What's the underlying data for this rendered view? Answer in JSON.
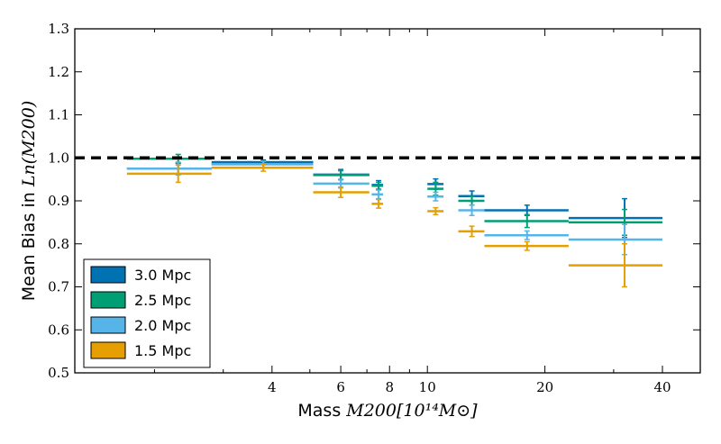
{
  "chart_data": {
    "type": "scatter",
    "title": "",
    "xlabel_prefix": "Mass ",
    "xlabel_math": "M200[10¹⁴M⊙]",
    "ylabel_prefix": "Mean Bias in ",
    "ylabel_math": "Ln(M200)",
    "x_scale": "log",
    "xlim": [
      1.25,
      50
    ],
    "ylim": [
      0.5,
      1.3
    ],
    "x_ticks": [
      4,
      6,
      8,
      10,
      20,
      40
    ],
    "x_tick_labels": [
      "4",
      "6",
      "8",
      "10",
      "20",
      "40"
    ],
    "y_ticks": [
      0.5,
      0.6,
      0.7,
      0.8,
      0.9,
      1.0,
      1.1,
      1.2,
      1.3
    ],
    "y_tick_labels": [
      "0.5",
      "0.6",
      "0.7",
      "0.8",
      "0.9",
      "1.0",
      "1.1",
      "1.2",
      "1.3"
    ],
    "reference_line": {
      "y": 1.0,
      "style": "dashed",
      "color": "#000000"
    },
    "grid": false,
    "legend_position": "bottom-left",
    "series": [
      {
        "name": "3.0 Mpc",
        "color": "#0072B2",
        "points": [
          {
            "x": 2.3,
            "y": 0.975,
            "xlo": 1.7,
            "xhi": 2.8,
            "yerr": 0.012
          },
          {
            "x": 3.8,
            "y": 0.99,
            "xlo": 2.8,
            "xhi": 5.1,
            "yerr": 0.005
          },
          {
            "x": 6.0,
            "y": 0.961,
            "xlo": 5.1,
            "xhi": 7.1,
            "yerr": 0.012
          },
          {
            "x": 7.5,
            "y": 0.937,
            "xlo": 7.2,
            "xhi": 7.7,
            "yerr": 0.01
          },
          {
            "x": 10.5,
            "y": 0.939,
            "xlo": 10.0,
            "xhi": 11.0,
            "yerr": 0.012
          },
          {
            "x": 13.0,
            "y": 0.911,
            "xlo": 12.0,
            "xhi": 14.0,
            "yerr": 0.012
          },
          {
            "x": 18.0,
            "y": 0.878,
            "xlo": 14.0,
            "xhi": 23.0,
            "yerr": 0.012
          },
          {
            "x": 32.0,
            "y": 0.86,
            "xlo": 23.0,
            "xhi": 40.0,
            "yerr": 0.045
          }
        ]
      },
      {
        "name": "2.5 Mpc",
        "color": "#009E73",
        "points": [
          {
            "x": 2.3,
            "y": 0.998,
            "xlo": 1.7,
            "xhi": 2.8,
            "yerr": 0.01
          },
          {
            "x": 3.8,
            "y": 0.985,
            "xlo": 2.8,
            "xhi": 5.1,
            "yerr": 0.007
          },
          {
            "x": 6.0,
            "y": 0.96,
            "xlo": 5.1,
            "xhi": 7.1,
            "yerr": 0.01
          },
          {
            "x": 7.5,
            "y": 0.935,
            "xlo": 7.2,
            "xhi": 7.7,
            "yerr": 0.008
          },
          {
            "x": 10.5,
            "y": 0.928,
            "xlo": 10.0,
            "xhi": 11.0,
            "yerr": 0.015
          },
          {
            "x": 13.0,
            "y": 0.9,
            "xlo": 12.0,
            "xhi": 14.0,
            "yerr": 0.01
          },
          {
            "x": 18.0,
            "y": 0.853,
            "xlo": 14.0,
            "xhi": 23.0,
            "yerr": 0.015
          },
          {
            "x": 32.0,
            "y": 0.85,
            "xlo": 23.0,
            "xhi": 40.0,
            "yerr": 0.03
          }
        ]
      },
      {
        "name": "2.0 Mpc",
        "color": "#56B4E9",
        "points": [
          {
            "x": 2.3,
            "y": 0.975,
            "xlo": 1.7,
            "xhi": 2.8,
            "yerr": 0.015
          },
          {
            "x": 3.8,
            "y": 0.985,
            "xlo": 2.8,
            "xhi": 5.1,
            "yerr": 0.007
          },
          {
            "x": 6.0,
            "y": 0.94,
            "xlo": 5.1,
            "xhi": 7.1,
            "yerr": 0.01
          },
          {
            "x": 7.5,
            "y": 0.915,
            "xlo": 7.2,
            "xhi": 7.7,
            "yerr": 0.01
          },
          {
            "x": 10.5,
            "y": 0.91,
            "xlo": 10.0,
            "xhi": 11.0,
            "yerr": 0.01
          },
          {
            "x": 13.0,
            "y": 0.878,
            "xlo": 12.0,
            "xhi": 14.0,
            "yerr": 0.012
          },
          {
            "x": 18.0,
            "y": 0.82,
            "xlo": 14.0,
            "xhi": 23.0,
            "yerr": 0.01
          },
          {
            "x": 32.0,
            "y": 0.81,
            "xlo": 23.0,
            "xhi": 40.0,
            "yerr": 0.035
          }
        ]
      },
      {
        "name": "1.5 Mpc",
        "color": "#E69F00",
        "points": [
          {
            "x": 2.3,
            "y": 0.963,
            "xlo": 1.7,
            "xhi": 2.8,
            "yerr": 0.02
          },
          {
            "x": 3.8,
            "y": 0.977,
            "xlo": 2.8,
            "xhi": 5.1,
            "yerr": 0.008
          },
          {
            "x": 6.0,
            "y": 0.92,
            "xlo": 5.1,
            "xhi": 7.1,
            "yerr": 0.012
          },
          {
            "x": 7.5,
            "y": 0.893,
            "xlo": 7.2,
            "xhi": 7.7,
            "yerr": 0.01
          },
          {
            "x": 10.5,
            "y": 0.876,
            "xlo": 10.0,
            "xhi": 11.0,
            "yerr": 0.008
          },
          {
            "x": 13.0,
            "y": 0.829,
            "xlo": 12.0,
            "xhi": 14.0,
            "yerr": 0.012
          },
          {
            "x": 18.0,
            "y": 0.795,
            "xlo": 14.0,
            "xhi": 23.0,
            "yerr": 0.01
          },
          {
            "x": 32.0,
            "y": 0.75,
            "xlo": 23.0,
            "xhi": 40.0,
            "yerr": 0.05
          }
        ]
      }
    ]
  }
}
